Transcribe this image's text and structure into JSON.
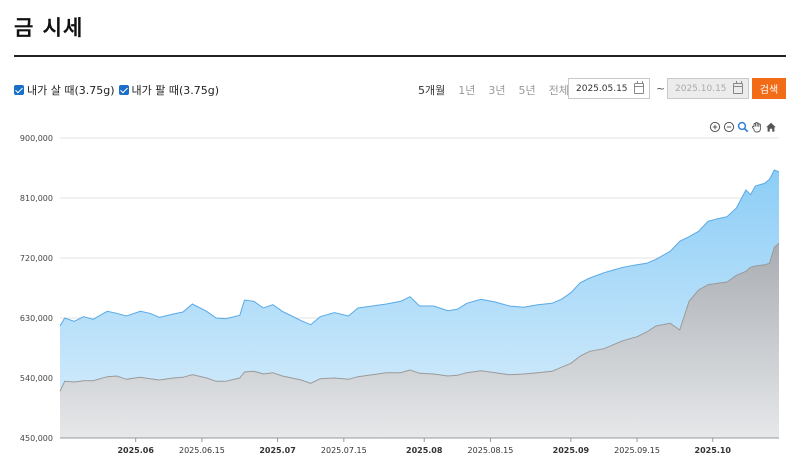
{
  "header": {
    "title": "금 시세"
  },
  "legend": [
    {
      "label": "내가 살 때(3.75g)",
      "checked": true
    },
    {
      "label": "내가 팔 때(3.75g)",
      "checked": true
    }
  ],
  "period_tabs": [
    {
      "label": "5개월",
      "active": true
    },
    {
      "label": "1년",
      "active": false
    },
    {
      "label": "3년",
      "active": false
    },
    {
      "label": "5년",
      "active": false
    },
    {
      "label": "전체",
      "active": false
    }
  ],
  "date_range": {
    "start": "2025.05.15",
    "separator": "~",
    "end": "2025.10.15",
    "end_disabled": true
  },
  "search_label": "검색",
  "toolbar_icons": [
    "zoom-in-icon",
    "zoom-out-icon",
    "zoom-select-icon",
    "pan-hand-icon",
    "reset-home-icon"
  ],
  "colors": {
    "buy_line": "#5aa9e6",
    "buy_fill_top": "#8ccdf6",
    "buy_fill_bottom": "#dbeffc",
    "sell_line": "#9a9a9a",
    "sell_fill_top": "#a9adb3",
    "sell_fill_bottom": "#e6e8ea",
    "accent": "#f26b16"
  },
  "chart_data": {
    "type": "area",
    "ylim": [
      450000,
      900000
    ],
    "yticks": [
      450000,
      540000,
      630000,
      720000,
      810000,
      900000
    ],
    "ytick_labels": [
      "450,000",
      "540,000",
      "630,000",
      "720,000",
      "810,000",
      "900,000"
    ],
    "xlim": [
      "2025-05-16",
      "2025-10-15"
    ],
    "xticks": [
      {
        "date": "2025-06-01",
        "label": "2025.06",
        "bold": true
      },
      {
        "date": "2025-06-15",
        "label": "2025.06.15",
        "bold": false
      },
      {
        "date": "2025-07-01",
        "label": "2025.07",
        "bold": true
      },
      {
        "date": "2025-07-15",
        "label": "2025.07.15",
        "bold": false
      },
      {
        "date": "2025-08-01",
        "label": "2025.08",
        "bold": true
      },
      {
        "date": "2025-08-15",
        "label": "2025.08.15",
        "bold": false
      },
      {
        "date": "2025-09-01",
        "label": "2025.09",
        "bold": true
      },
      {
        "date": "2025-09-15",
        "label": "2025.09.15",
        "bold": false
      },
      {
        "date": "2025-10-01",
        "label": "2025.10",
        "bold": true
      }
    ],
    "grid": true,
    "series": [
      {
        "name": "내가 살 때(3.75g)",
        "points": [
          [
            "2025-05-16",
            618000
          ],
          [
            "2025-05-17",
            630000
          ],
          [
            "2025-05-19",
            625000
          ],
          [
            "2025-05-21",
            632000
          ],
          [
            "2025-05-23",
            628000
          ],
          [
            "2025-05-26",
            640000
          ],
          [
            "2025-05-28",
            637000
          ],
          [
            "2025-05-30",
            633000
          ],
          [
            "2025-06-02",
            640000
          ],
          [
            "2025-06-04",
            637000
          ],
          [
            "2025-06-06",
            631000
          ],
          [
            "2025-06-09",
            636000
          ],
          [
            "2025-06-11",
            639000
          ],
          [
            "2025-06-13",
            651000
          ],
          [
            "2025-06-16",
            640000
          ],
          [
            "2025-06-18",
            630000
          ],
          [
            "2025-06-20",
            629000
          ],
          [
            "2025-06-23",
            634000
          ],
          [
            "2025-06-24",
            657000
          ],
          [
            "2025-06-26",
            655000
          ],
          [
            "2025-06-28",
            645000
          ],
          [
            "2025-06-30",
            650000
          ],
          [
            "2025-07-02",
            640000
          ],
          [
            "2025-07-04",
            633000
          ],
          [
            "2025-07-06",
            626000
          ],
          [
            "2025-07-08",
            620000
          ],
          [
            "2025-07-10",
            632000
          ],
          [
            "2025-07-13",
            638000
          ],
          [
            "2025-07-16",
            633000
          ],
          [
            "2025-07-18",
            645000
          ],
          [
            "2025-07-21",
            648000
          ],
          [
            "2025-07-24",
            651000
          ],
          [
            "2025-07-27",
            655000
          ],
          [
            "2025-07-29",
            662000
          ],
          [
            "2025-07-31",
            648000
          ],
          [
            "2025-08-03",
            648000
          ],
          [
            "2025-08-06",
            641000
          ],
          [
            "2025-08-08",
            643000
          ],
          [
            "2025-08-10",
            652000
          ],
          [
            "2025-08-13",
            658000
          ],
          [
            "2025-08-16",
            654000
          ],
          [
            "2025-08-19",
            648000
          ],
          [
            "2025-08-22",
            646000
          ],
          [
            "2025-08-25",
            650000
          ],
          [
            "2025-08-28",
            652000
          ],
          [
            "2025-08-30",
            658000
          ],
          [
            "2025-09-01",
            668000
          ],
          [
            "2025-09-03",
            683000
          ],
          [
            "2025-09-05",
            690000
          ],
          [
            "2025-09-08",
            698000
          ],
          [
            "2025-09-10",
            702000
          ],
          [
            "2025-09-12",
            706000
          ],
          [
            "2025-09-15",
            710000
          ],
          [
            "2025-09-17",
            712000
          ],
          [
            "2025-09-19",
            718000
          ],
          [
            "2025-09-22",
            730000
          ],
          [
            "2025-09-24",
            745000
          ],
          [
            "2025-09-26",
            752000
          ],
          [
            "2025-09-28",
            760000
          ],
          [
            "2025-09-30",
            775000
          ],
          [
            "2025-10-02",
            779000
          ],
          [
            "2025-10-04",
            782000
          ],
          [
            "2025-10-06",
            795000
          ],
          [
            "2025-10-08",
            822000
          ],
          [
            "2025-10-09",
            815000
          ],
          [
            "2025-10-10",
            828000
          ],
          [
            "2025-10-12",
            832000
          ],
          [
            "2025-10-13",
            838000
          ],
          [
            "2025-10-14",
            852000
          ],
          [
            "2025-10-15",
            849000
          ]
        ]
      },
      {
        "name": "내가 팔 때(3.75g)",
        "points": [
          [
            "2025-05-16",
            520000
          ],
          [
            "2025-05-17",
            535000
          ],
          [
            "2025-05-19",
            534000
          ],
          [
            "2025-05-21",
            536000
          ],
          [
            "2025-05-23",
            536000
          ],
          [
            "2025-05-26",
            542000
          ],
          [
            "2025-05-28",
            543000
          ],
          [
            "2025-05-30",
            538000
          ],
          [
            "2025-06-02",
            541000
          ],
          [
            "2025-06-04",
            539000
          ],
          [
            "2025-06-06",
            537000
          ],
          [
            "2025-06-09",
            540000
          ],
          [
            "2025-06-11",
            541000
          ],
          [
            "2025-06-13",
            545000
          ],
          [
            "2025-06-16",
            540000
          ],
          [
            "2025-06-18",
            535000
          ],
          [
            "2025-06-20",
            535000
          ],
          [
            "2025-06-23",
            540000
          ],
          [
            "2025-06-24",
            549000
          ],
          [
            "2025-06-26",
            550000
          ],
          [
            "2025-06-28",
            546000
          ],
          [
            "2025-06-30",
            548000
          ],
          [
            "2025-07-02",
            543000
          ],
          [
            "2025-07-04",
            540000
          ],
          [
            "2025-07-06",
            537000
          ],
          [
            "2025-07-08",
            532000
          ],
          [
            "2025-07-10",
            539000
          ],
          [
            "2025-07-13",
            540000
          ],
          [
            "2025-07-16",
            538000
          ],
          [
            "2025-07-18",
            542000
          ],
          [
            "2025-07-21",
            545000
          ],
          [
            "2025-07-24",
            548000
          ],
          [
            "2025-07-27",
            548000
          ],
          [
            "2025-07-29",
            552000
          ],
          [
            "2025-07-31",
            547000
          ],
          [
            "2025-08-03",
            546000
          ],
          [
            "2025-08-06",
            543000
          ],
          [
            "2025-08-08",
            544000
          ],
          [
            "2025-08-10",
            548000
          ],
          [
            "2025-08-13",
            551000
          ],
          [
            "2025-08-16",
            548000
          ],
          [
            "2025-08-19",
            545000
          ],
          [
            "2025-08-22",
            546000
          ],
          [
            "2025-08-25",
            548000
          ],
          [
            "2025-08-28",
            550000
          ],
          [
            "2025-08-30",
            556000
          ],
          [
            "2025-09-01",
            562000
          ],
          [
            "2025-09-03",
            573000
          ],
          [
            "2025-09-05",
            580000
          ],
          [
            "2025-09-08",
            584000
          ],
          [
            "2025-09-10",
            590000
          ],
          [
            "2025-09-12",
            596000
          ],
          [
            "2025-09-15",
            602000
          ],
          [
            "2025-09-17",
            609000
          ],
          [
            "2025-09-19",
            618000
          ],
          [
            "2025-09-22",
            622000
          ],
          [
            "2025-09-24",
            612000
          ],
          [
            "2025-09-26",
            655000
          ],
          [
            "2025-09-28",
            672000
          ],
          [
            "2025-09-30",
            680000
          ],
          [
            "2025-10-02",
            682000
          ],
          [
            "2025-10-04",
            684000
          ],
          [
            "2025-10-06",
            694000
          ],
          [
            "2025-10-08",
            700000
          ],
          [
            "2025-10-09",
            706000
          ],
          [
            "2025-10-10",
            708000
          ],
          [
            "2025-10-12",
            710000
          ],
          [
            "2025-10-13",
            712000
          ],
          [
            "2025-10-14",
            736000
          ],
          [
            "2025-10-15",
            742000
          ]
        ]
      }
    ]
  }
}
